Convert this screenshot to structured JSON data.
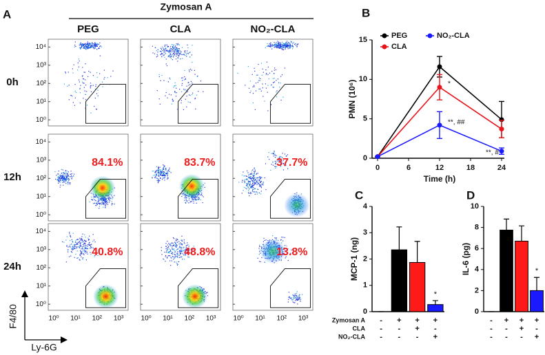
{
  "flow": {
    "panel": "A",
    "treatment": "Zymosan A",
    "columns": [
      "PEG",
      "CLA",
      "NO₂-CLA"
    ],
    "rows": [
      "0h",
      "12h",
      "24h"
    ],
    "gate_labels": [
      [
        "84.1%",
        "83.7%",
        "37.7%"
      ],
      [
        "40.8%",
        "48.8%",
        "13.8%"
      ]
    ],
    "yticks": [
      "10⁰",
      "10¹",
      "10²",
      "10³",
      "10⁴"
    ],
    "xticks": [
      "10⁰",
      "10¹",
      "10²",
      "10³"
    ],
    "ylabel": "F4/80",
    "xlabel": "Ly-6G"
  },
  "chart_data": [
    {
      "type": "line",
      "panel": "B",
      "ylabel": "PMN (10⁶)",
      "xlabel": "Time (h)",
      "x": [
        0,
        12,
        24
      ],
      "xlim": [
        0,
        24
      ],
      "xticks": [
        0,
        6,
        12,
        18,
        24
      ],
      "ylim": [
        0,
        15
      ],
      "yticks": [
        0,
        5,
        10,
        15
      ],
      "series": [
        {
          "name": "PEG",
          "color": "#000000",
          "values": [
            0.2,
            11.6,
            4.9
          ],
          "errors": [
            0,
            1.3,
            2.3
          ]
        },
        {
          "name": "CLA",
          "color": "#e8131b",
          "values": [
            0.2,
            9.0,
            3.7
          ],
          "errors": [
            0,
            1.6,
            1.1
          ]
        },
        {
          "name": "NO₂-CLA",
          "color": "#1a1aff",
          "values": [
            0.2,
            4.2,
            0.9
          ],
          "errors": [
            0,
            1.7,
            0.4
          ]
        }
      ],
      "annotations": [
        "*",
        "**, ##",
        "**, #"
      ]
    },
    {
      "type": "bar",
      "panel": "C",
      "ylabel": "MCP-1 (ng)",
      "ylim": [
        0,
        4
      ],
      "yticks": [
        0,
        1,
        2,
        3,
        4
      ],
      "values": [
        0,
        2.35,
        1.87,
        0.27
      ],
      "errors": [
        0,
        0.87,
        0.8,
        0.15
      ],
      "colors": [
        "#000000",
        "#000000",
        "#ff1a1a",
        "#1a1aff"
      ],
      "conditions": [
        {
          "name": "Zymosan A",
          "signs": [
            "-",
            "+",
            "+",
            "+"
          ]
        },
        {
          "name": "CLA",
          "signs": [
            "-",
            "-",
            "+",
            "-"
          ]
        },
        {
          "name": "NO₂-CLA",
          "signs": [
            "-",
            "-",
            "-",
            "+"
          ]
        }
      ],
      "annotations": [
        "*"
      ]
    },
    {
      "type": "bar",
      "panel": "D",
      "ylabel": "IL-6 (pg)",
      "ylim": [
        0,
        10
      ],
      "yticks": [
        0,
        2,
        4,
        6,
        8,
        10
      ],
      "values": [
        0,
        7.75,
        6.7,
        2.0
      ],
      "errors": [
        0,
        1.05,
        1.45,
        1.25
      ],
      "colors": [
        "#000000",
        "#000000",
        "#ff1a1a",
        "#1a1aff"
      ],
      "conditions": [
        {
          "signs": [
            "-",
            "+",
            "+",
            "+"
          ]
        },
        {
          "signs": [
            "-",
            "-",
            "+",
            "-"
          ]
        },
        {
          "signs": [
            "-",
            "-",
            "-",
            "+"
          ]
        }
      ],
      "annotations": [
        "*"
      ]
    }
  ]
}
